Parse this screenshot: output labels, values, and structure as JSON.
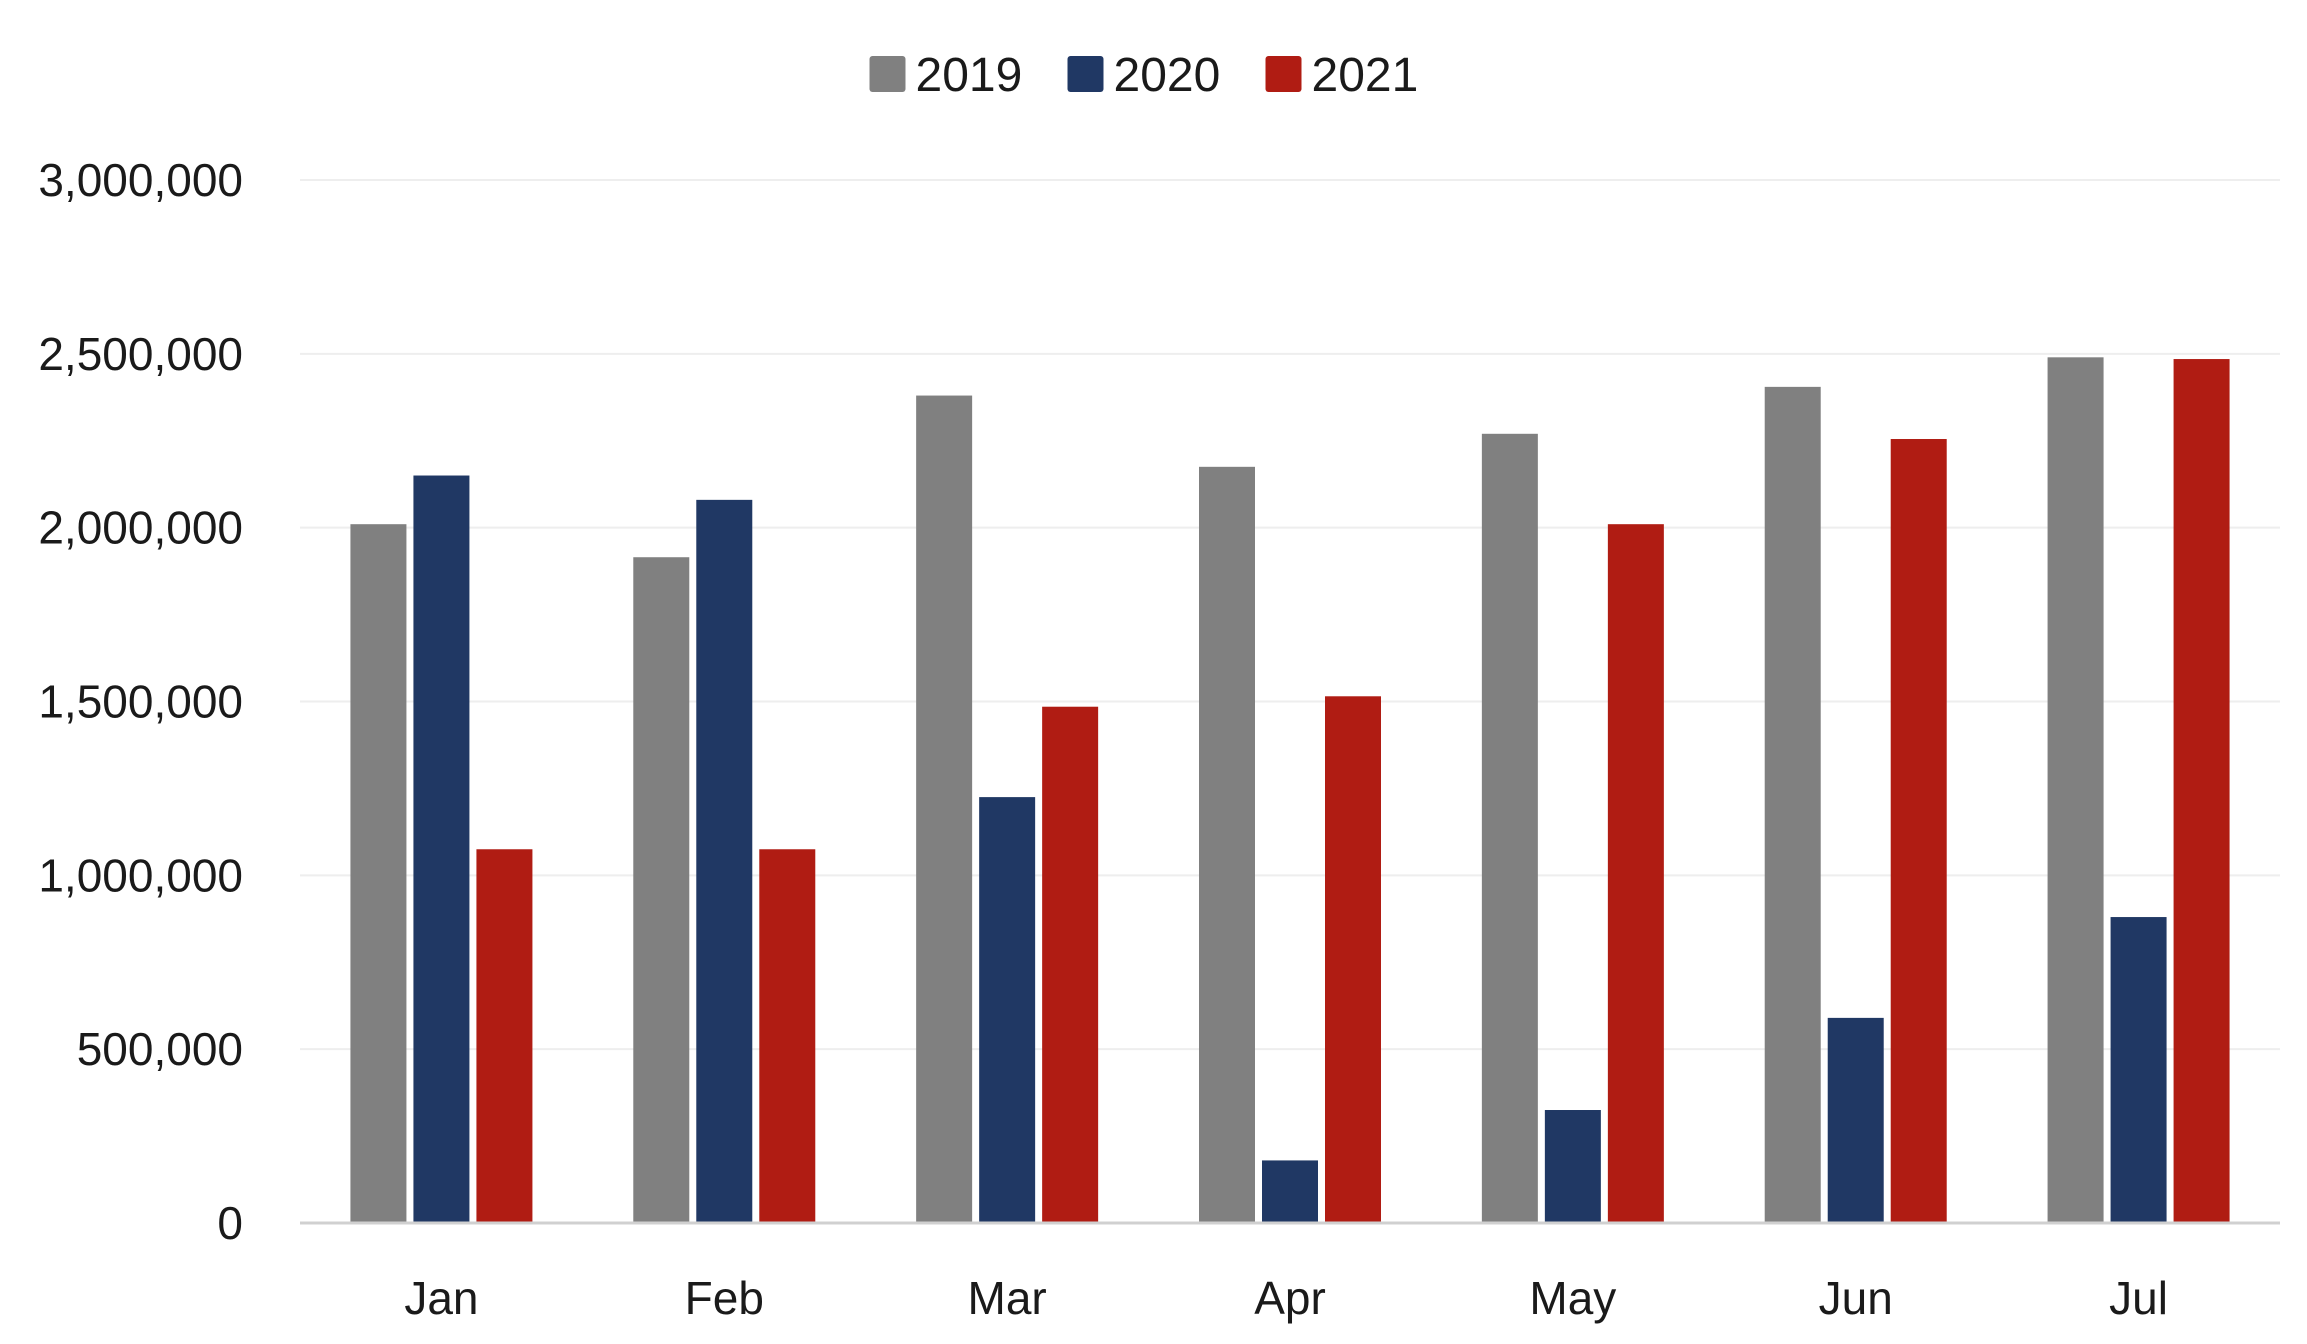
{
  "chart_data": {
    "type": "bar",
    "title": "",
    "xlabel": "",
    "ylabel": "",
    "categories": [
      "Jan",
      "Feb",
      "Mar",
      "Apr",
      "May",
      "Jun",
      "Jul"
    ],
    "series": [
      {
        "name": "2019",
        "color": "#808080",
        "values": [
          2010000,
          1915000,
          2380000,
          2175000,
          2270000,
          2405000,
          2490000
        ]
      },
      {
        "name": "2020",
        "color": "#203864",
        "values": [
          2150000,
          2080000,
          1225000,
          180000,
          325000,
          590000,
          880000
        ]
      },
      {
        "name": "2021",
        "color": "#B01C13",
        "values": [
          1075000,
          1075000,
          1485000,
          1515000,
          2010000,
          2255000,
          2485000
        ]
      }
    ],
    "ylim": [
      0,
      3000000
    ],
    "yticks": [
      0,
      500000,
      1000000,
      1500000,
      2000000,
      2500000,
      3000000
    ],
    "ytick_labels": [
      "0",
      "500,000",
      "1,000,000",
      "1,500,000",
      "2,000,000",
      "2,500,000",
      "3,000,000"
    ],
    "grid": true,
    "legend_position": "top-center"
  }
}
